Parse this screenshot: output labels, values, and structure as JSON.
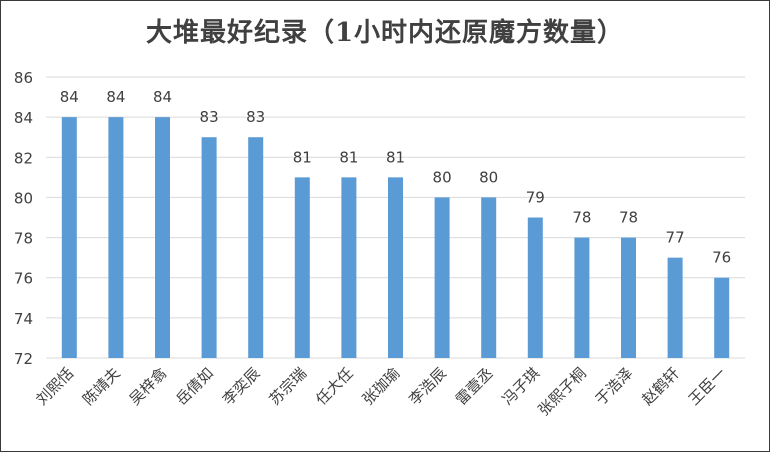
{
  "chart_data": {
    "type": "bar",
    "title": "大堆最好纪录（1小时内还原魔方数量）",
    "categories": [
      "刘熙恬",
      "陈靖夫",
      "吴梓翕",
      "岳倩如",
      "李奕辰",
      "苏宗瑞",
      "任大任",
      "张珈瑜",
      "李浩辰",
      "雷壹丞",
      "冯子琪",
      "张熙子桐",
      "于浩泽",
      "赵鹤轩",
      "王臣一"
    ],
    "values": [
      84,
      84,
      84,
      83,
      83,
      81,
      81,
      81,
      80,
      80,
      79,
      78,
      78,
      77,
      76
    ],
    "ylim": [
      72,
      86
    ],
    "yticks": [
      72,
      74,
      76,
      78,
      80,
      82,
      84,
      86
    ],
    "xlabel": "",
    "ylabel": "",
    "grid": true,
    "legend": "none",
    "colors": {
      "bar": "#5b9bd5",
      "grid": "#d9d9d9",
      "text": "#404040"
    }
  }
}
